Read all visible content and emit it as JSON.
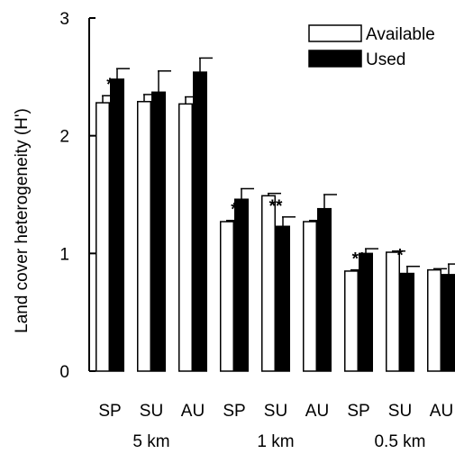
{
  "chart_data": {
    "type": "bar",
    "ylabel": "Land cover heterogeneity (H')",
    "ylim": [
      0,
      3
    ],
    "yticks": [
      "0",
      "1",
      "2",
      "3"
    ],
    "categories": [
      "SP",
      "SU",
      "AU",
      "SP",
      "SU",
      "AU",
      "SP",
      "SU",
      "AU"
    ],
    "groups": [
      {
        "label": "5 km",
        "count": 3
      },
      {
        "label": "1 km",
        "count": 3
      },
      {
        "label": "0.5 km",
        "count": 3
      }
    ],
    "series": [
      {
        "name": "Available",
        "color": "#ffffff",
        "values": [
          2.28,
          2.29,
          2.27,
          1.27,
          1.49,
          1.27,
          0.85,
          1.01,
          0.86
        ],
        "errors": [
          0.06,
          0.06,
          0.06,
          0.01,
          0.02,
          0.01,
          0.01,
          0.01,
          0.01
        ]
      },
      {
        "name": "Used",
        "color": "#000000",
        "values": [
          2.48,
          2.37,
          2.54,
          1.46,
          1.23,
          1.38,
          1.0,
          0.83,
          0.82
        ],
        "errors": [
          0.09,
          0.18,
          0.12,
          0.09,
          0.08,
          0.12,
          0.04,
          0.06,
          0.09
        ]
      }
    ],
    "significance": [
      "*",
      "",
      "",
      "*",
      "**",
      "",
      "**",
      "*",
      ""
    ],
    "legend_position": "top-right",
    "grid": false
  }
}
